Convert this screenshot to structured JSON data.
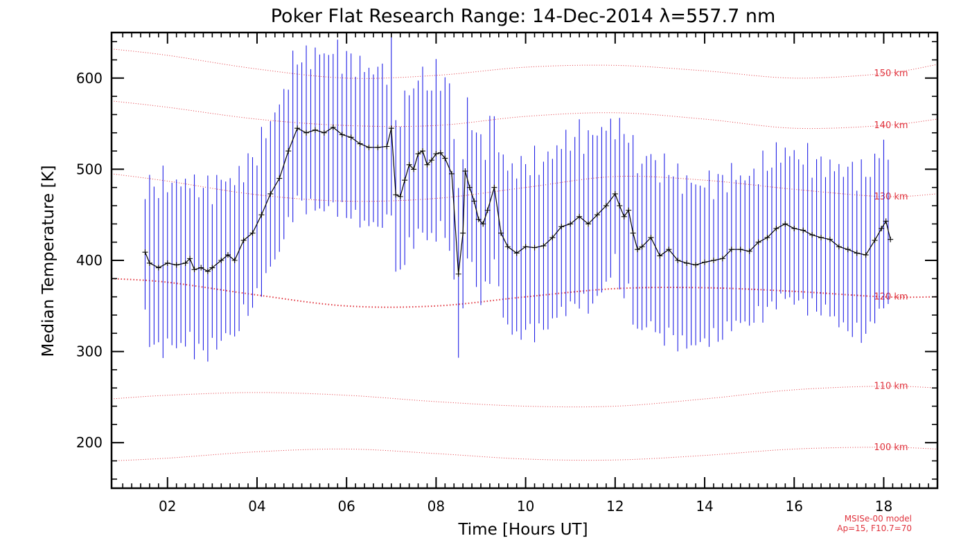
{
  "chart_data": {
    "type": "line",
    "title": "Poker Flat Research Range: 14-Dec-2014 λ=557.7 nm",
    "xlabel": "Time [Hours UT]",
    "ylabel": "Median Temperature [K]",
    "xlim": [
      0.75,
      19.2
    ],
    "ylim": [
      150,
      650
    ],
    "x_ticks": [
      2,
      4,
      6,
      8,
      10,
      12,
      14,
      16,
      18
    ],
    "x_tick_labels": [
      "02",
      "04",
      "06",
      "08",
      "10",
      "12",
      "14",
      "16",
      "18"
    ],
    "y_ticks": [
      200,
      300,
      400,
      500,
      600
    ],
    "y_tick_labels": [
      "200",
      "300",
      "400",
      "500",
      "600"
    ],
    "grid": false,
    "colors": {
      "data_line": "#000000",
      "error_bars": "#1e1ee6",
      "model": "#e0323c"
    },
    "series": [
      {
        "x": [
          1.5,
          1.6,
          1.8,
          2.0,
          2.2,
          2.4,
          2.5,
          2.6,
          2.75,
          2.9,
          3.0,
          3.2,
          3.35,
          3.5,
          3.7,
          3.9,
          4.1,
          4.3,
          4.5,
          4.7,
          4.9,
          5.1,
          5.3,
          5.5,
          5.7,
          5.9,
          6.1,
          6.3,
          6.5,
          6.7,
          6.9,
          7.0,
          7.1,
          7.2,
          7.3,
          7.4,
          7.5,
          7.6,
          7.7,
          7.8,
          7.9,
          8.0,
          8.1,
          8.2,
          8.35,
          8.5,
          8.6,
          8.65,
          8.75,
          8.85,
          8.95,
          9.05,
          9.15,
          9.3,
          9.45,
          9.6,
          9.8,
          10.0,
          10.2,
          10.4,
          10.6,
          10.8,
          11.0,
          11.2,
          11.4,
          11.6,
          11.8,
          12.0,
          12.1,
          12.2,
          12.3,
          12.4,
          12.5,
          12.6,
          12.8,
          13.0,
          13.2,
          13.4,
          13.6,
          13.8,
          14.0,
          14.2,
          14.4,
          14.6,
          14.8,
          15.0,
          15.2,
          15.4,
          15.6,
          15.8,
          16.0,
          16.2,
          16.4,
          16.6,
          16.8,
          17.0,
          17.2,
          17.4,
          17.6,
          17.8,
          17.95,
          18.05,
          18.15
        ],
        "y": [
          409,
          397,
          392,
          397,
          395,
          397,
          402,
          390,
          392,
          388,
          392,
          400,
          406,
          400,
          422,
          430,
          450,
          473,
          490,
          520,
          545,
          540,
          543,
          540,
          546,
          538,
          535,
          528,
          524,
          524,
          525,
          545,
          472,
          470,
          488,
          505,
          500,
          517,
          520,
          505,
          510,
          517,
          518,
          512,
          495,
          385,
          430,
          498,
          480,
          465,
          445,
          440,
          455,
          480,
          430,
          415,
          408,
          415,
          414,
          416,
          425,
          437,
          440,
          448,
          440,
          450,
          460,
          473,
          460,
          448,
          455,
          430,
          412,
          415,
          425,
          405,
          412,
          400,
          397,
          395,
          398,
          400,
          402,
          412,
          412,
          410,
          420,
          425,
          435,
          440,
          435,
          433,
          428,
          425,
          423,
          415,
          412,
          408,
          406,
          422,
          435,
          443,
          423
        ],
        "err": [
          70,
          85,
          90,
          90,
          88,
          90,
          85,
          90,
          90,
          90,
          88,
          88,
          85,
          85,
          80,
          80,
          80,
          80,
          80,
          80,
          80,
          80,
          85,
          85,
          85,
          85,
          85,
          85,
          85,
          85,
          85,
          85,
          88,
          85,
          85,
          85,
          85,
          85,
          85,
          85,
          85,
          85,
          85,
          85,
          85,
          88,
          85,
          85,
          80,
          80,
          85,
          85,
          80,
          80,
          80,
          88,
          92,
          92,
          92,
          92,
          92,
          92,
          92,
          92,
          92,
          92,
          85,
          75,
          85,
          88,
          90,
          90,
          92,
          92,
          92,
          92,
          92,
          90,
          90,
          88,
          86,
          85,
          85,
          82,
          80,
          80,
          80,
          80,
          80,
          80,
          80,
          80,
          80,
          80,
          80,
          85,
          88,
          88,
          88,
          85,
          88,
          90,
          82
        ]
      }
    ],
    "model_curves": [
      {
        "label": "100 km",
        "x": [
          0.75,
          2,
          4,
          6,
          8,
          10,
          12,
          14,
          16,
          18,
          19.2
        ],
        "y": [
          180,
          183,
          190,
          193,
          188,
          182,
          181,
          186,
          193,
          195,
          193
        ]
      },
      {
        "label": "110 km",
        "x": [
          0.75,
          2,
          4,
          6,
          8,
          10,
          12,
          14,
          16,
          18,
          19.2
        ],
        "y": [
          248,
          252,
          255,
          252,
          245,
          240,
          240,
          248,
          258,
          262,
          260
        ]
      },
      {
        "label": "120 km",
        "x": [
          0.75,
          2,
          4,
          6,
          8,
          10,
          12,
          14,
          16,
          18,
          19.2
        ],
        "y": [
          380,
          376,
          362,
          350,
          350,
          360,
          369,
          370,
          366,
          360,
          360
        ]
      },
      {
        "label": "130 km",
        "x": [
          0.75,
          2,
          4,
          6,
          8,
          10,
          12,
          14,
          16,
          18,
          19.2
        ],
        "y": [
          495,
          487,
          472,
          465,
          468,
          480,
          492,
          488,
          478,
          470,
          473
        ]
      },
      {
        "label": "140 km",
        "x": [
          0.75,
          2,
          4,
          6,
          8,
          10,
          12,
          14,
          16,
          18,
          19.2
        ],
        "y": [
          575,
          568,
          555,
          548,
          548,
          558,
          562,
          555,
          545,
          548,
          555
        ]
      },
      {
        "label": "150 km",
        "x": [
          0.75,
          2,
          4,
          6,
          8,
          10,
          12,
          14,
          16,
          18,
          19.2
        ],
        "y": [
          632,
          625,
          610,
          600,
          603,
          612,
          614,
          608,
          600,
          605,
          615
        ]
      }
    ],
    "annotations": [
      "MSISe-00 model",
      "Ap=15, F10.7=70"
    ]
  }
}
